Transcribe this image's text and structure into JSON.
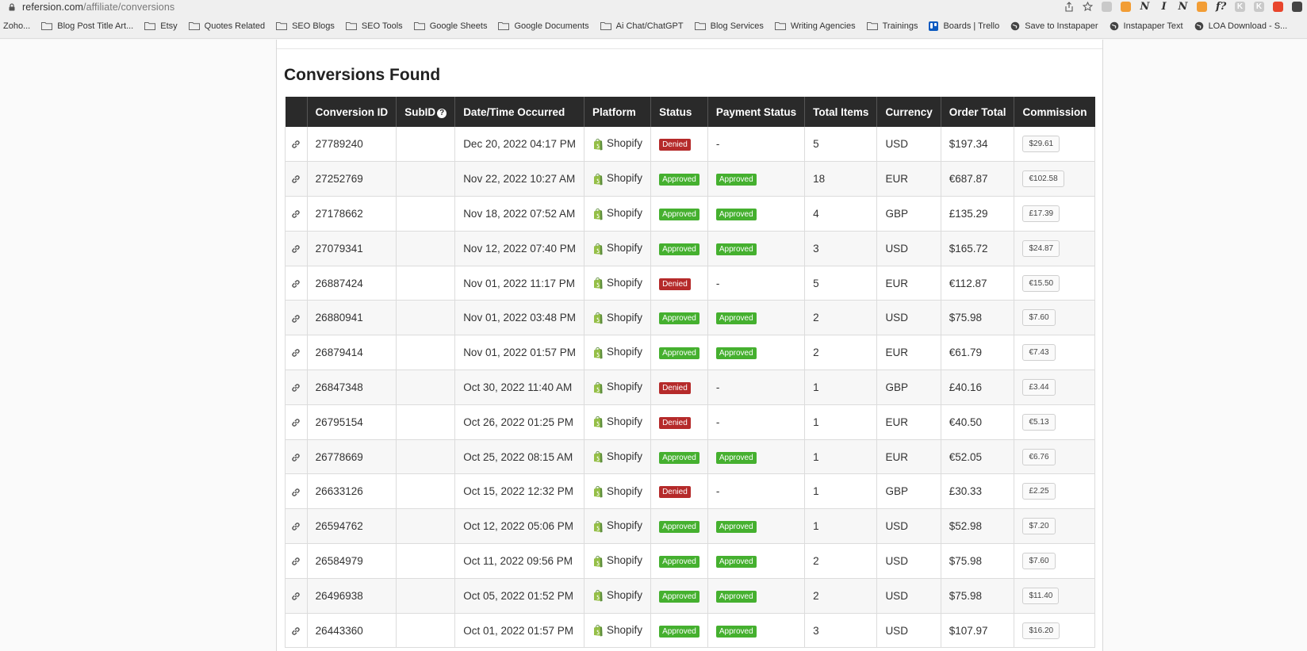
{
  "browser": {
    "url_domain": "refersion.com",
    "url_path": "/affiliate/conversions",
    "bookmarks": [
      {
        "label": "Zoho...",
        "icon": "none"
      },
      {
        "label": "Blog Post Title Art...",
        "icon": "folder"
      },
      {
        "label": "Etsy",
        "icon": "folder"
      },
      {
        "label": "Quotes Related",
        "icon": "folder"
      },
      {
        "label": "SEO Blogs",
        "icon": "folder"
      },
      {
        "label": "SEO Tools",
        "icon": "folder"
      },
      {
        "label": "Google Sheets",
        "icon": "folder"
      },
      {
        "label": "Google Documents",
        "icon": "folder"
      },
      {
        "label": "Ai Chat/ChatGPT",
        "icon": "folder"
      },
      {
        "label": "Blog Services",
        "icon": "folder"
      },
      {
        "label": "Writing Agencies",
        "icon": "folder"
      },
      {
        "label": "Trainings",
        "icon": "folder"
      },
      {
        "label": "Boards | Trello",
        "icon": "trello"
      },
      {
        "label": "Save to Instapaper",
        "icon": "globe"
      },
      {
        "label": "Instapaper Text",
        "icon": "globe"
      },
      {
        "label": "LOA Download - S...",
        "icon": "globe"
      }
    ],
    "extensions": [
      {
        "name": "share-icon",
        "text": ""
      },
      {
        "name": "star-icon",
        "text": ""
      },
      {
        "name": "extension-grey-icon",
        "text": ""
      },
      {
        "name": "extension-orange-icon",
        "text": ""
      },
      {
        "name": "extension-n-icon",
        "text": "N"
      },
      {
        "name": "extension-italic-i-icon",
        "text": "I"
      },
      {
        "name": "notion-icon",
        "text": "N"
      },
      {
        "name": "extension-badge-icon",
        "text": ""
      },
      {
        "name": "extension-f-icon",
        "text": "f?"
      },
      {
        "name": "extension-k-icon",
        "text": "K"
      },
      {
        "name": "extension-k2-icon",
        "text": "K"
      },
      {
        "name": "extension-red-icon",
        "text": ""
      },
      {
        "name": "extension-flag-icon",
        "text": ""
      }
    ]
  },
  "page": {
    "title": "Conversions Found",
    "columns": [
      "",
      "Conversion ID",
      "SubID",
      "Date/Time Occurred",
      "Platform",
      "Status",
      "Payment Status",
      "Total Items",
      "Currency",
      "Order Total",
      "Commission"
    ],
    "rows": [
      {
        "id": "27789240",
        "subid": "",
        "date": "Dec 20, 2022 04:17 PM",
        "platform": "Shopify",
        "status": "Denied",
        "payment": "-",
        "items": "5",
        "currency": "USD",
        "total": "$197.34",
        "commission": "$29.61"
      },
      {
        "id": "27252769",
        "subid": "",
        "date": "Nov 22, 2022 10:27 AM",
        "platform": "Shopify",
        "status": "Approved",
        "payment": "Approved",
        "items": "18",
        "currency": "EUR",
        "total": "€687.87",
        "commission": "€102.58"
      },
      {
        "id": "27178662",
        "subid": "",
        "date": "Nov 18, 2022 07:52 AM",
        "platform": "Shopify",
        "status": "Approved",
        "payment": "Approved",
        "items": "4",
        "currency": "GBP",
        "total": "£135.29",
        "commission": "£17.39"
      },
      {
        "id": "27079341",
        "subid": "",
        "date": "Nov 12, 2022 07:40 PM",
        "platform": "Shopify",
        "status": "Approved",
        "payment": "Approved",
        "items": "3",
        "currency": "USD",
        "total": "$165.72",
        "commission": "$24.87"
      },
      {
        "id": "26887424",
        "subid": "",
        "date": "Nov 01, 2022 11:17 PM",
        "platform": "Shopify",
        "status": "Denied",
        "payment": "-",
        "items": "5",
        "currency": "EUR",
        "total": "€112.87",
        "commission": "€15.50"
      },
      {
        "id": "26880941",
        "subid": "",
        "date": "Nov 01, 2022 03:48 PM",
        "platform": "Shopify",
        "status": "Approved",
        "payment": "Approved",
        "items": "2",
        "currency": "USD",
        "total": "$75.98",
        "commission": "$7.60"
      },
      {
        "id": "26879414",
        "subid": "",
        "date": "Nov 01, 2022 01:57 PM",
        "platform": "Shopify",
        "status": "Approved",
        "payment": "Approved",
        "items": "2",
        "currency": "EUR",
        "total": "€61.79",
        "commission": "€7.43"
      },
      {
        "id": "26847348",
        "subid": "",
        "date": "Oct 30, 2022 11:40 AM",
        "platform": "Shopify",
        "status": "Denied",
        "payment": "-",
        "items": "1",
        "currency": "GBP",
        "total": "£40.16",
        "commission": "£3.44"
      },
      {
        "id": "26795154",
        "subid": "",
        "date": "Oct 26, 2022 01:25 PM",
        "platform": "Shopify",
        "status": "Denied",
        "payment": "-",
        "items": "1",
        "currency": "EUR",
        "total": "€40.50",
        "commission": "€5.13"
      },
      {
        "id": "26778669",
        "subid": "",
        "date": "Oct 25, 2022 08:15 AM",
        "platform": "Shopify",
        "status": "Approved",
        "payment": "Approved",
        "items": "1",
        "currency": "EUR",
        "total": "€52.05",
        "commission": "€6.76"
      },
      {
        "id": "26633126",
        "subid": "",
        "date": "Oct 15, 2022 12:32 PM",
        "platform": "Shopify",
        "status": "Denied",
        "payment": "-",
        "items": "1",
        "currency": "GBP",
        "total": "£30.33",
        "commission": "£2.25"
      },
      {
        "id": "26594762",
        "subid": "",
        "date": "Oct 12, 2022 05:06 PM",
        "platform": "Shopify",
        "status": "Approved",
        "payment": "Approved",
        "items": "1",
        "currency": "USD",
        "total": "$52.98",
        "commission": "$7.20"
      },
      {
        "id": "26584979",
        "subid": "",
        "date": "Oct 11, 2022 09:56 PM",
        "platform": "Shopify",
        "status": "Approved",
        "payment": "Approved",
        "items": "2",
        "currency": "USD",
        "total": "$75.98",
        "commission": "$7.60"
      },
      {
        "id": "26496938",
        "subid": "",
        "date": "Oct 05, 2022 01:52 PM",
        "platform": "Shopify",
        "status": "Approved",
        "payment": "Approved",
        "items": "2",
        "currency": "USD",
        "total": "$75.98",
        "commission": "$11.40"
      },
      {
        "id": "26443360",
        "subid": "",
        "date": "Oct 01, 2022 01:57 PM",
        "platform": "Shopify",
        "status": "Approved",
        "payment": "Approved",
        "items": "3",
        "currency": "USD",
        "total": "$107.97",
        "commission": "$16.20"
      }
    ]
  },
  "colors": {
    "header_bg": "#2a2a2a",
    "approved": "#45b02f",
    "denied": "#b52a2a",
    "shopify_green": "#95bf47"
  }
}
